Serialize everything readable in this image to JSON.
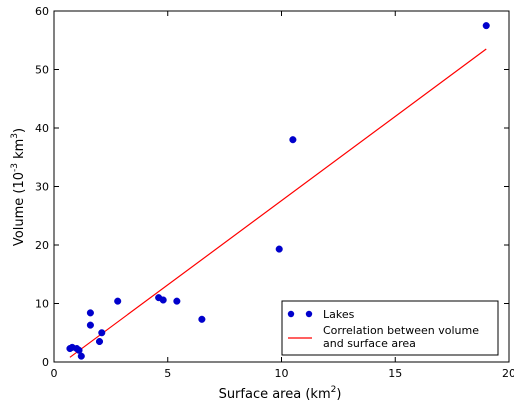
{
  "chart_data": {
    "type": "scatter",
    "title": "",
    "xlabel": {
      "base": "Surface area (km",
      "sup": "2",
      "end": ")"
    },
    "ylabel": {
      "base": "Volume (10",
      "sup1": "-3",
      "mid": " km",
      "sup2": "3",
      "end": ")"
    },
    "xlim": [
      0,
      20
    ],
    "ylim": [
      0,
      60
    ],
    "xticks": [
      0,
      5,
      10,
      15,
      20
    ],
    "yticks": [
      0,
      10,
      20,
      30,
      40,
      50,
      60
    ],
    "grid": false,
    "legend_position": "lower-right",
    "series": [
      {
        "name": "Lakes",
        "kind": "points",
        "color": "#0000cc",
        "x": [
          0.7,
          0.8,
          1.0,
          1.1,
          1.2,
          1.6,
          1.6,
          2.0,
          2.1,
          2.8,
          4.6,
          4.8,
          5.4,
          6.5,
          9.9,
          10.5,
          19.0
        ],
        "y": [
          2.3,
          2.5,
          2.3,
          2.0,
          1.0,
          6.3,
          8.4,
          3.5,
          5.0,
          10.4,
          11.0,
          10.6,
          10.4,
          7.3,
          19.3,
          38.0,
          57.5
        ]
      },
      {
        "name": "Correlation between volume and surface area",
        "legend_lines": [
          "Correlation between volume",
          "and surface area"
        ],
        "kind": "line",
        "color": "#ff0000",
        "x": [
          0.7,
          19.0
        ],
        "y": [
          0.8,
          53.5
        ]
      }
    ]
  }
}
